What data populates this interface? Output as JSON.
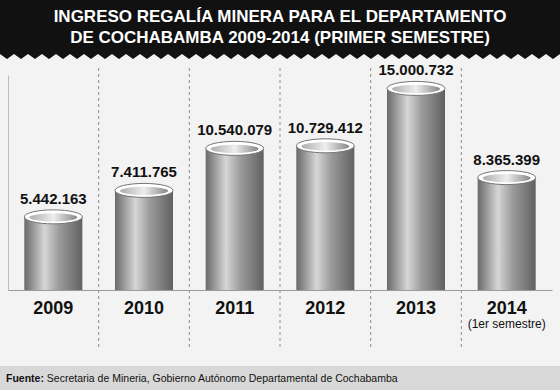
{
  "chart_data": {
    "type": "bar",
    "title": "INGRESO REGALÍA MINERA PARA EL DEPARTAMENTO\nDE COCHABAMBA 2009-2014 (PRIMER SEMESTRE)",
    "categories": [
      "2009",
      "2010",
      "2011",
      "2012",
      "2013",
      "2014\n(1er semestre)"
    ],
    "values": [
      5442163,
      7411765,
      10540079,
      10729412,
      15000732,
      8365399
    ],
    "value_labels": [
      "5.442.163",
      "7.411.765",
      "10.540.079",
      "10.729.412",
      "15.000.732",
      "8.365.399"
    ],
    "data_labels": true,
    "color": "#9b9b9b",
    "ylim": [
      0,
      16000000
    ],
    "tick_labels": "x",
    "source": "Fuente: Secretaria de Mineria, Gobierno Autónomo Departamental de Cochabamba"
  }
}
